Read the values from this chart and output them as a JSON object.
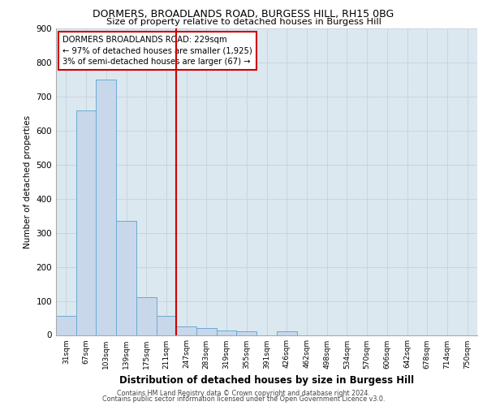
{
  "title1": "DORMERS, BROADLANDS ROAD, BURGESS HILL, RH15 0BG",
  "title2": "Size of property relative to detached houses in Burgess Hill",
  "xlabel": "Distribution of detached houses by size in Burgess Hill",
  "ylabel": "Number of detached properties",
  "bin_labels": [
    "31sqm",
    "67sqm",
    "103sqm",
    "139sqm",
    "175sqm",
    "211sqm",
    "247sqm",
    "283sqm",
    "319sqm",
    "355sqm",
    "391sqm",
    "426sqm",
    "462sqm",
    "498sqm",
    "534sqm",
    "570sqm",
    "606sqm",
    "642sqm",
    "678sqm",
    "714sqm",
    "750sqm"
  ],
  "bar_values": [
    55,
    660,
    750,
    335,
    110,
    55,
    25,
    20,
    14,
    10,
    0,
    10,
    0,
    0,
    0,
    0,
    0,
    0,
    0,
    0,
    0
  ],
  "bar_color": "#c8d8ea",
  "bar_edge_color": "#6aaad4",
  "vline_color": "#cc0000",
  "annotation_line1": "DORMERS BROADLANDS ROAD: 229sqm",
  "annotation_line2": "← 97% of detached houses are smaller (1,925)",
  "annotation_line3": "3% of semi-detached houses are larger (67) →",
  "annotation_box_color": "#ffffff",
  "annotation_box_edge_color": "#cc0000",
  "ylim": [
    0,
    900
  ],
  "yticks": [
    0,
    100,
    200,
    300,
    400,
    500,
    600,
    700,
    800,
    900
  ],
  "grid_color": "#c8d4e0",
  "background_color": "#dce8f0",
  "footer1": "Contains HM Land Registry data © Crown copyright and database right 2024.",
  "footer2": "Contains public sector information licensed under the Open Government Licence v3.0."
}
